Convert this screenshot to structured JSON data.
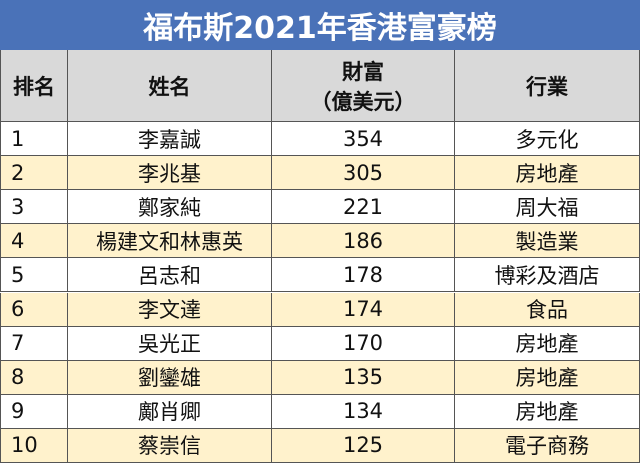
{
  "title": "福布斯2021年香港富豪榜",
  "table": {
    "header": [
      "排名",
      "姓名",
      [
        "財富",
        "（億美元）"
      ],
      "行業"
    ],
    "rows": [
      [
        1,
        "李嘉誠",
        354,
        "多元化"
      ],
      [
        2,
        "李兆基",
        305,
        "房地產"
      ],
      [
        3,
        "鄭家純",
        221,
        "周大福"
      ],
      [
        4,
        "楊建文和林惠英",
        186,
        "製造業"
      ],
      [
        5,
        "呂志和",
        178,
        "博彩及酒店"
      ],
      [
        6,
        "李文達",
        174,
        "食品"
      ],
      [
        7,
        "吳光正",
        170,
        "房地產"
      ],
      [
        8,
        "劉鑾雄",
        135,
        "房地產"
      ],
      [
        9,
        "鄺肖卿",
        134,
        "房地產"
      ],
      [
        10,
        "蔡崇信",
        125,
        "電子商務"
      ]
    ]
  }
}
